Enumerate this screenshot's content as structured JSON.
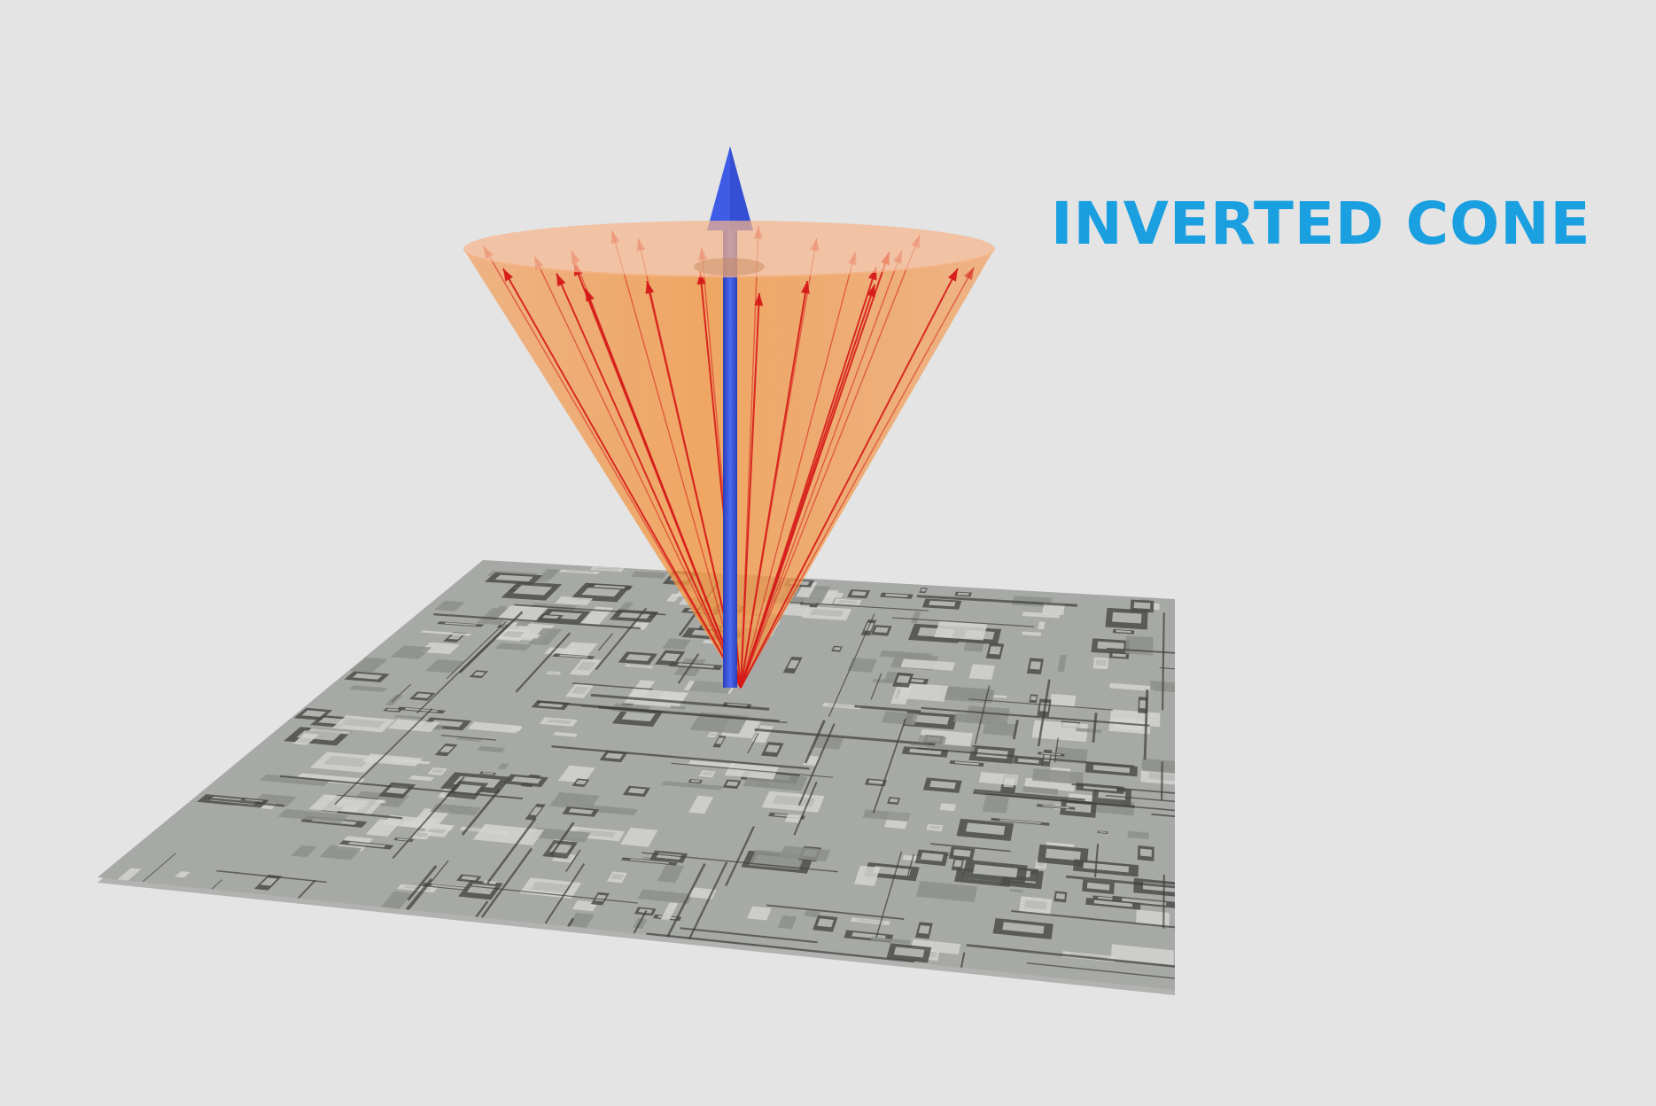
{
  "title": {
    "text": "INVERTED CONE"
  },
  "colors": {
    "background": "#e4e4e4",
    "title": "#1a9fe0",
    "cone_fill": "#f29a4e",
    "ray": "#d61a1a",
    "normal": "#3452d8",
    "board_top": "#a7a9a6",
    "board_shadow": "#4c4d4b",
    "board_light": "#d3d5d2"
  },
  "rays": {
    "count": 24
  },
  "icons": {
    "normal_arrow": "arrow-up",
    "ray_arrows": "arrow-head",
    "surface": "circuit-board"
  }
}
